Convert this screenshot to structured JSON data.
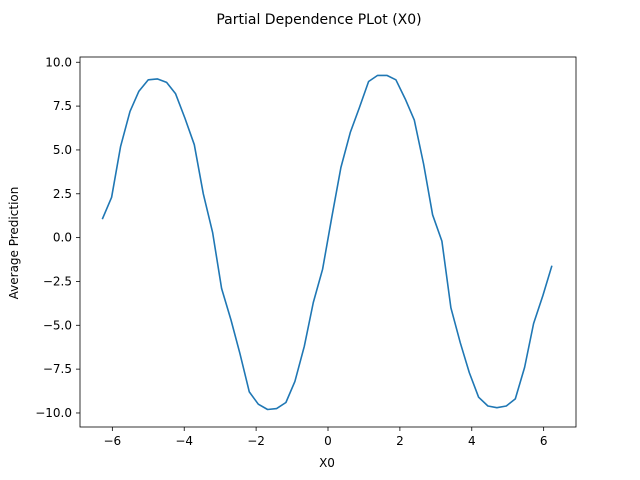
{
  "chart_data": {
    "type": "line",
    "title": "Partial Dependence PLot (X0)",
    "xlabel": "X0",
    "ylabel": "Average Prediction",
    "xlim": [
      -6.9,
      6.9
    ],
    "ylim": [
      -10.8,
      10.3
    ],
    "xticks": [
      -6,
      -4,
      -2,
      0,
      2,
      4,
      6
    ],
    "xtick_labels": [
      "−6",
      "−4",
      "−2",
      "0",
      "2",
      "4",
      "6"
    ],
    "yticks": [
      10.0,
      7.5,
      5.0,
      2.5,
      0.0,
      -2.5,
      -5.0,
      -7.5,
      -10.0
    ],
    "ytick_labels": [
      "10.0",
      "7.5",
      "5.0",
      "2.5",
      "0.0",
      "−2.5",
      "−5.0",
      "−7.5",
      "−10.0"
    ],
    "grid": false,
    "series": [
      {
        "color": "#1f77b4",
        "x": [
          -6.28,
          -6.02,
          -5.77,
          -5.51,
          -5.26,
          -5.0,
          -4.75,
          -4.49,
          -4.24,
          -3.98,
          -3.72,
          -3.47,
          -3.21,
          -2.96,
          -2.7,
          -2.45,
          -2.19,
          -1.94,
          -1.68,
          -1.43,
          -1.17,
          -0.92,
          -0.66,
          -0.41,
          -0.15,
          0.1,
          0.36,
          0.62,
          0.87,
          1.13,
          1.38,
          1.64,
          1.89,
          2.15,
          2.4,
          2.66,
          2.91,
          3.17,
          3.42,
          3.68,
          3.93,
          4.19,
          4.45,
          4.7,
          4.96,
          5.21,
          5.47,
          5.72,
          5.98,
          6.23
        ],
        "y": [
          1.05,
          2.3,
          5.2,
          7.2,
          8.35,
          9.0,
          9.05,
          8.85,
          8.2,
          6.8,
          5.3,
          2.5,
          0.3,
          -2.9,
          -4.7,
          -6.6,
          -8.8,
          -9.5,
          -9.8,
          -9.75,
          -9.4,
          -8.2,
          -6.2,
          -3.7,
          -1.8,
          1.1,
          4.0,
          6.0,
          7.4,
          8.9,
          9.25,
          9.25,
          9.0,
          7.9,
          6.7,
          4.2,
          1.3,
          -0.2,
          -4.0,
          -6.0,
          -7.7,
          -9.1,
          -9.6,
          -9.7,
          -9.6,
          -9.2,
          -7.4,
          -4.9,
          -3.3,
          -1.6
        ]
      }
    ]
  }
}
